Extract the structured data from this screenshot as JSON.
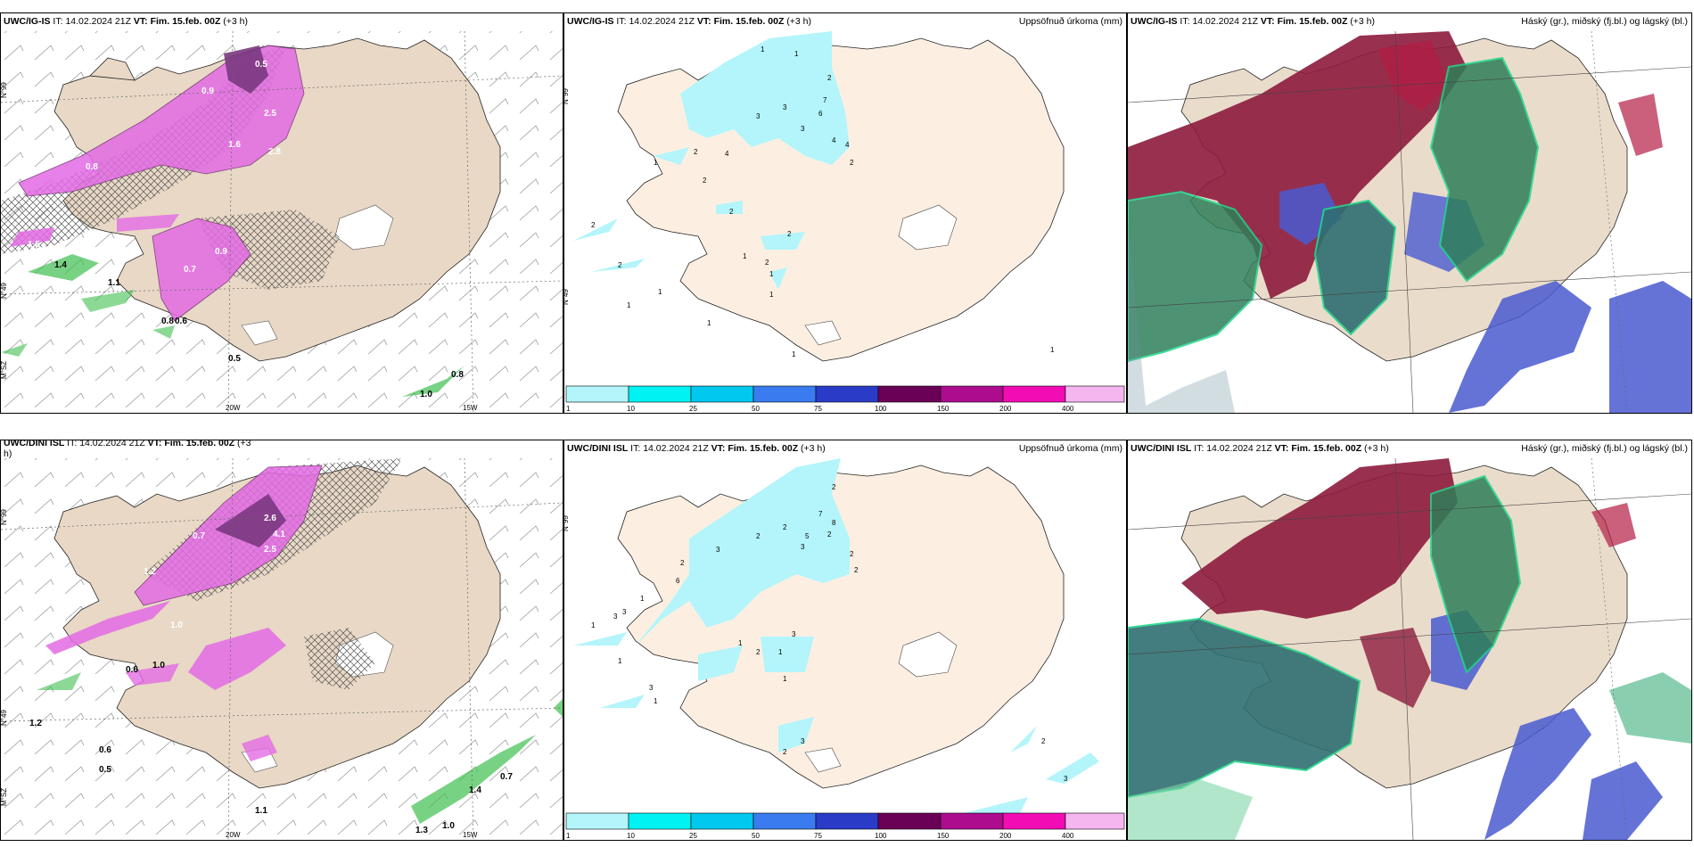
{
  "rows": [
    {
      "model": "UWC/IG-IS",
      "panels": [
        {
          "model": "UWC/IG-IS",
          "it_label": "IT:",
          "it_value": "14.02.2024 21Z",
          "vt_label": "VT:",
          "vt_value": "Fim. 15.feb. 00Z",
          "lead": "(+3 h)",
          "title_right": ""
        },
        {
          "model": "UWC/IG-IS",
          "it_label": "IT:",
          "it_value": "14.02.2024 21Z",
          "vt_label": "VT:",
          "vt_value": "Fim. 15.feb. 00Z",
          "lead": "(+3 h)",
          "title_right": "Uppsöfnuð úrkoma (mm)"
        },
        {
          "model": "UWC/IG-IS",
          "it_label": "IT:",
          "it_value": "14.02.2024 21Z",
          "vt_label": "VT:",
          "vt_value": "Fim. 15.feb. 00Z",
          "lead": "(+3 h)",
          "title_right": "Háský (gr.), miðský (fj.bl.) og lágský (bl.)"
        }
      ],
      "precip_values": [
        "0.5",
        "1.4",
        "2.5",
        "2.8",
        "1.6",
        "0.9",
        "1.5",
        "0.7",
        "0.8",
        "0.5",
        "0.9",
        "0.8",
        "1.1",
        "0.6",
        "1.0",
        "0.8"
      ]
    },
    {
      "model": "UWC/DINI ISL",
      "panels": [
        {
          "model": "UWC/DINI ISL",
          "it_label": "IT:",
          "it_value": "14.02.2024 21Z",
          "vt_label": "VT:",
          "vt_value": "Fim. 15.feb. 00Z",
          "lead": "(+3",
          "lead2": "h)",
          "title_right": ""
        },
        {
          "model": "UWC/DINI ISL",
          "it_label": "IT:",
          "it_value": "14.02.2024 21Z",
          "vt_label": "VT:",
          "vt_value": "Fim. 15.feb. 00Z",
          "lead": "(+3 h)",
          "title_right": "Uppsöfnuð úrkoma (mm)"
        },
        {
          "model": "UWC/DINI ISL",
          "it_label": "IT:",
          "it_value": "14.02.2024 21Z",
          "vt_label": "VT:",
          "vt_value": "Fim. 15.feb. 00Z",
          "lead": "(+3 h)",
          "title_right": "Háský (gr.), miðský (fj.bl.) og lágský (bl.)"
        }
      ],
      "precip_values": [
        "0.6",
        "1.0",
        "2.6",
        "4.1",
        "2.5",
        "1.2",
        "0.7",
        "1.0",
        "0.6",
        "0.5",
        "1.2",
        "1.4",
        "0.7",
        "1.1",
        "1.3",
        "1.0"
      ]
    }
  ],
  "axes": {
    "lat_top": "N°99",
    "lat_mid": "N°49",
    "lon_bot": "M°SZ",
    "lon_20": "20W",
    "lon_15": "15W"
  },
  "colorbar": {
    "labels": [
      "1",
      "10",
      "25",
      "50",
      "75",
      "100",
      "150",
      "200",
      "400"
    ],
    "colors": [
      "#b3f5fb",
      "#00f2f2",
      "#00c8ee",
      "#3a7cf0",
      "#2a3bc8",
      "#6b0057",
      "#ad0c8f",
      "#f20cb4",
      "#f5b6f0"
    ]
  },
  "precip_counts_top": [
    "1",
    "1",
    "2",
    "3",
    "3",
    "3",
    "6",
    "7",
    "4",
    "4",
    "2",
    "2",
    "4",
    "2",
    "1",
    "2",
    "2",
    "1",
    "1",
    "2",
    "1",
    "2",
    "1",
    "1",
    "2",
    "1",
    "1",
    "1"
  ],
  "precip_counts_bottom": [
    "2",
    "2",
    "2",
    "5",
    "3",
    "7",
    "8",
    "2",
    "2",
    "2",
    "3",
    "2",
    "6",
    "3",
    "1",
    "1",
    "3",
    "1",
    "3",
    "1",
    "1",
    "2",
    "1",
    "1",
    "3",
    "3",
    "2",
    "3",
    "2"
  ]
}
